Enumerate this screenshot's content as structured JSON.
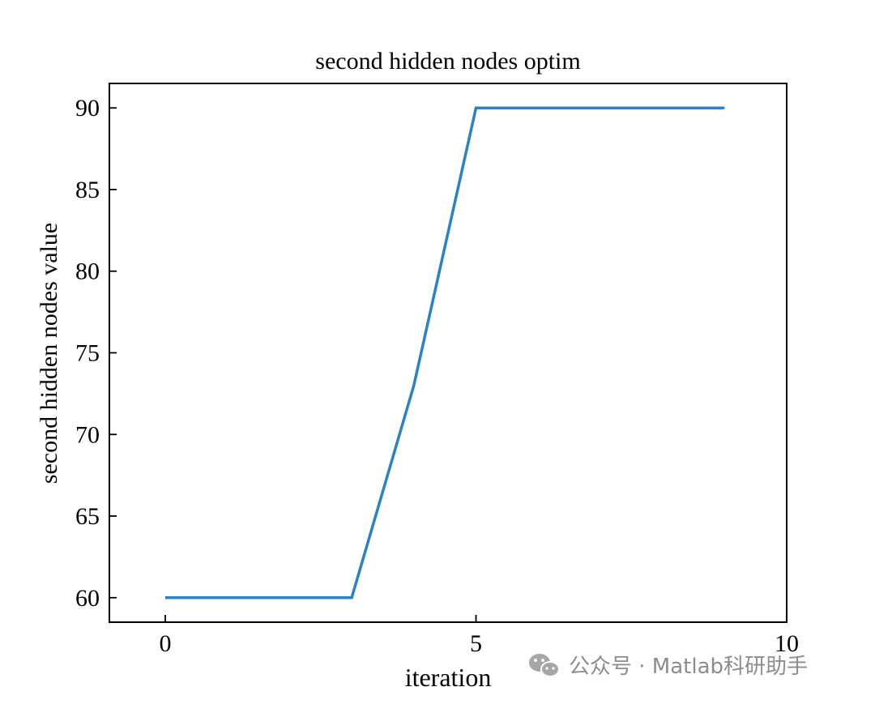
{
  "chart_data": {
    "type": "line",
    "title": "second hidden nodes optim",
    "xlabel": "iteration",
    "ylabel": "second hidden nodes value",
    "xlim": [
      -0.9,
      10
    ],
    "ylim": [
      58.5,
      91.5
    ],
    "xticks": [
      0,
      5,
      10
    ],
    "yticks": [
      60,
      65,
      70,
      75,
      80,
      85,
      90
    ],
    "grid": false,
    "series": [
      {
        "x": [
          0,
          1,
          2,
          3,
          4,
          5,
          6,
          7,
          8,
          9
        ],
        "values": [
          60,
          60,
          60,
          60,
          73,
          90,
          90,
          90,
          90,
          90
        ],
        "color": "#2b83c6"
      }
    ]
  },
  "watermark": {
    "icon": "wechat-icon",
    "text": "公众号 · Matlab科研助手"
  }
}
